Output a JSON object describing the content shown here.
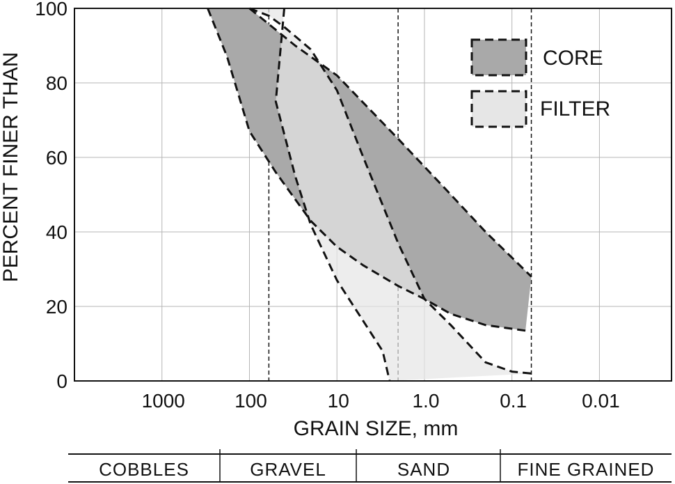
{
  "chart_data": {
    "type": "area",
    "xlabel": "GRAIN SIZE, mm",
    "ylabel": "PERCENT FINER THAN",
    "x_scale": "log",
    "x_reversed": true,
    "xlim": [
      10000,
      0.0015
    ],
    "ylim": [
      0,
      100
    ],
    "x_ticks": [
      1000,
      100,
      10,
      1.0,
      0.1,
      0.01
    ],
    "x_tick_labels": [
      "1000",
      "100",
      "10",
      "1.0",
      "0.1",
      "0.01"
    ],
    "y_ticks": [
      0,
      20,
      40,
      60,
      80,
      100
    ],
    "y_tick_labels": [
      "0",
      "20",
      "40",
      "60",
      "80",
      "100"
    ],
    "grid": true,
    "boundary_lines_mm": [
      60,
      2,
      0.06
    ],
    "legend_position": "top-right",
    "series": [
      {
        "name": "CORE",
        "color": "#a9a9a9",
        "upper": [
          [
            100,
            100
          ],
          [
            30,
            90
          ],
          [
            10,
            82
          ],
          [
            2,
            65
          ],
          [
            0.6,
            52
          ],
          [
            0.2,
            40
          ],
          [
            0.06,
            28
          ]
        ],
        "lower": [
          [
            300,
            100
          ],
          [
            180,
            87
          ],
          [
            100,
            67
          ],
          [
            50,
            56
          ],
          [
            20,
            43
          ],
          [
            10,
            36
          ],
          [
            5,
            31
          ],
          [
            2,
            25.5
          ],
          [
            1,
            22
          ],
          [
            0.5,
            18
          ],
          [
            0.2,
            15
          ],
          [
            0.07,
            13.5
          ]
        ]
      },
      {
        "name": "FILTER",
        "color": "#e6e6e6",
        "upper": [
          [
            100,
            100
          ],
          [
            60,
            98
          ],
          [
            40,
            95
          ],
          [
            20,
            89
          ],
          [
            10,
            78
          ],
          [
            5,
            60
          ],
          [
            2,
            37
          ],
          [
            1,
            22
          ],
          [
            0.5,
            15
          ],
          [
            0.2,
            5
          ],
          [
            0.1,
            2.5
          ],
          [
            0.06,
            2
          ]
        ],
        "lower": [
          [
            40,
            100
          ],
          [
            50,
            75
          ],
          [
            30,
            55
          ],
          [
            20,
            42
          ],
          [
            10,
            27
          ],
          [
            3,
            8
          ],
          [
            2.5,
            0
          ]
        ]
      }
    ],
    "classification": [
      "COBBLES",
      "GRAVEL",
      "SAND",
      "FINE GRAINED"
    ]
  },
  "colors": {
    "core": "#a9a9a9",
    "filter": "#e6e6e6",
    "ink": "#111111"
  }
}
